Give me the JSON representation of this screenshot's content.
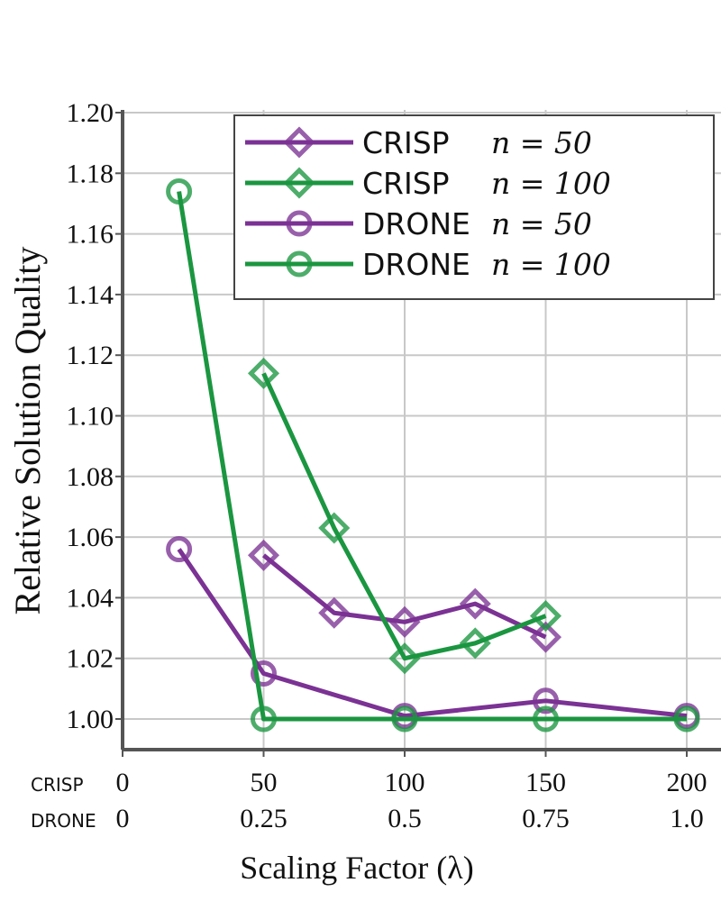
{
  "chart_data": {
    "type": "line",
    "ylabel": "Relative Solution Quality",
    "xlabel": "Scaling Factor (λ)",
    "ylim": [
      0.99,
      1.2
    ],
    "xlim": [
      0,
      200
    ],
    "grid": true,
    "legend_position": "top-right",
    "y_ticks": [
      "1.00",
      "1.02",
      "1.04",
      "1.06",
      "1.08",
      "1.10",
      "1.12",
      "1.14",
      "1.16",
      "1.18",
      "1.20"
    ],
    "x_tick_rows": [
      {
        "label": "CRISP",
        "ticks": [
          "0",
          "50",
          "100",
          "150",
          "200"
        ]
      },
      {
        "label": "DRONE",
        "ticks": [
          "0",
          "0.25",
          "0.5",
          "0.75",
          "1.0"
        ]
      }
    ],
    "series": [
      {
        "name": "CRISP",
        "n_label": "n = 50",
        "color": "#7b3294",
        "marker": "diamond",
        "x": [
          50,
          75,
          100,
          125,
          150
        ],
        "y": [
          1.054,
          1.035,
          1.032,
          1.038,
          1.027
        ]
      },
      {
        "name": "CRISP",
        "n_label": "n = 100",
        "color": "#1b9640",
        "marker": "diamond",
        "x": [
          50,
          75,
          100,
          125,
          150
        ],
        "y": [
          1.114,
          1.063,
          1.02,
          1.025,
          1.034
        ]
      },
      {
        "name": "DRONE",
        "n_label": "n = 50",
        "color": "#7b3294",
        "marker": "circle",
        "x": [
          20,
          50,
          100,
          150,
          200
        ],
        "y": [
          1.056,
          1.015,
          1.001,
          1.006,
          1.001
        ]
      },
      {
        "name": "DRONE",
        "n_label": "n = 100",
        "color": "#1b9640",
        "marker": "circle",
        "x": [
          20,
          50,
          100,
          150,
          200
        ],
        "y": [
          1.174,
          1.0,
          1.0,
          1.0,
          1.0
        ]
      }
    ]
  }
}
